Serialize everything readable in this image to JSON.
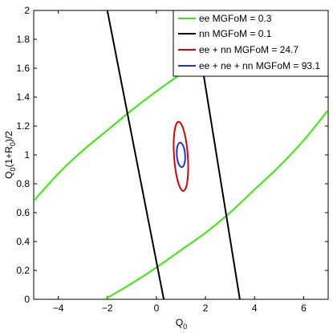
{
  "chart_data": {
    "type": "line",
    "title": "",
    "xlabel": "Q",
    "xlabel_sub": "0",
    "ylabel_parts": [
      "Q",
      "0",
      "(1+R",
      "0",
      ")/2"
    ],
    "xlim": [
      -5,
      7
    ],
    "ylim": [
      0,
      2
    ],
    "x_ticks": [
      -4,
      -2,
      0,
      2,
      4,
      6
    ],
    "y_ticks": [
      0,
      0.2,
      0.4,
      0.6,
      0.8,
      1,
      1.2,
      1.4,
      1.6,
      1.8,
      2
    ],
    "x_tick_labels": [
      "−4",
      "−2",
      "0",
      "2",
      "4",
      "6"
    ],
    "y_tick_labels": [
      "0",
      "0.2",
      "0.4",
      "0.6",
      "0.8",
      "1",
      "1.2",
      "1.4",
      "1.6",
      "1.8",
      "2"
    ],
    "grid": false,
    "legend_position": "top-right",
    "series": [
      {
        "name": "ee MGFoM = 0.3",
        "color": "#33ee00",
        "segments": [
          [
            [
              -5,
              0.68
            ],
            [
              -4,
              0.87
            ],
            [
              -3,
              1.03
            ],
            [
              -2,
              1.17
            ],
            [
              -1,
              1.31
            ],
            [
              0,
              1.44
            ],
            [
              1,
              1.56
            ],
            [
              2,
              1.67
            ]
          ],
          [
            [
              -2.1,
              0
            ],
            [
              -1,
              0.11
            ],
            [
              0,
              0.22
            ],
            [
              1,
              0.34
            ],
            [
              2,
              0.46
            ],
            [
              3,
              0.6
            ],
            [
              4,
              0.76
            ],
            [
              5,
              0.92
            ],
            [
              6,
              1.1
            ],
            [
              7,
              1.31
            ]
          ]
        ]
      },
      {
        "name": "nn MGFoM = 0.1",
        "color": "#000000",
        "segments": [
          [
            [
              -2,
              2
            ],
            [
              0.3,
              0
            ]
          ],
          [
            [
              1.5,
              2
            ],
            [
              3.4,
              0
            ]
          ]
        ]
      },
      {
        "name": "ee + nn MGFoM = 24.7",
        "color": "#e00000",
        "ellipse": {
          "center": [
            1.0,
            0.99
          ],
          "rx": 0.28,
          "ry": 0.24
        }
      },
      {
        "name": "ee + ne + nn MGFoM = 93.1",
        "color": "#1a33ee",
        "ellipse": {
          "center": [
            1.0,
            1.0
          ],
          "rx": 0.17,
          "ry": 0.085
        }
      }
    ]
  }
}
